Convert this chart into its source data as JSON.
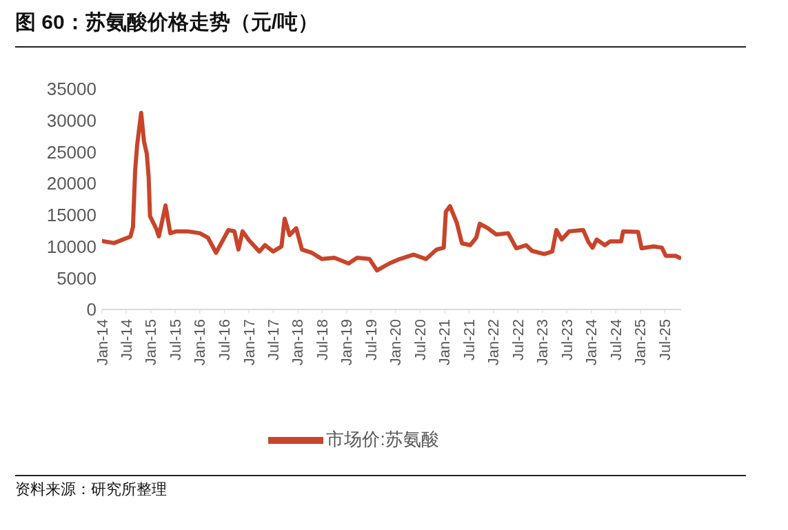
{
  "chart_data": {
    "type": "line",
    "title": "图 60：苏氨酸价格走势（元/吨）",
    "annotations": [
      "资料来源：研究所整理"
    ],
    "x": [
      "2014-01-01",
      "2014-04-01",
      "2014-08-01",
      "2014-08-20",
      "2014-09-05",
      "2014-09-20",
      "2014-10-20",
      "2014-11-10",
      "2014-12-01",
      "2014-12-15",
      "2014-12-25",
      "2015-02-10",
      "2015-03-01",
      "2015-04-20",
      "2015-05-25",
      "2015-07-10",
      "2015-10-01",
      "2016-01-01",
      "2016-03-01",
      "2016-05-01",
      "2016-08-01",
      "2016-09-15",
      "2016-10-15",
      "2016-11-15",
      "2017-01-01",
      "2017-03-20",
      "2017-05-01",
      "2017-07-01",
      "2017-09-01",
      "2017-09-25",
      "2017-11-01",
      "2017-12-20",
      "2018-02-01",
      "2018-04-15",
      "2018-07-01",
      "2018-10-01",
      "2019-01-15",
      "2019-03-20",
      "2019-06-20",
      "2019-08-15",
      "2019-11-15",
      "2020-02-01",
      "2020-05-15",
      "2020-08-15",
      "2020-11-01",
      "2020-12-25",
      "2021-01-10",
      "2021-02-10",
      "2021-04-01",
      "2021-05-10",
      "2021-07-10",
      "2021-08-25",
      "2021-09-20",
      "2021-11-20",
      "2022-01-20",
      "2022-04-20",
      "2022-06-20",
      "2022-09-01",
      "2022-10-15",
      "2023-01-15",
      "2023-03-15",
      "2023-04-15",
      "2023-05-25",
      "2023-07-20",
      "2023-11-01",
      "2023-12-10",
      "2024-01-10",
      "2024-02-10",
      "2024-04-10",
      "2024-05-20",
      "2024-08-10",
      "2024-08-25",
      "2024-12-15",
      "2025-01-10",
      "2025-04-10",
      "2025-06-10",
      "2025-07-10",
      "2025-09-20",
      "2025-10-20"
    ],
    "series": [
      {
        "name": "市场价:苏氨酸",
        "color": "#c8442a",
        "values": [
          10850,
          10540,
          11570,
          13100,
          22000,
          26100,
          31200,
          26700,
          24700,
          21000,
          14800,
          12800,
          11600,
          16500,
          12100,
          12400,
          12400,
          12100,
          11400,
          9000,
          12600,
          12400,
          9500,
          12400,
          11000,
          9200,
          10200,
          9200,
          10000,
          14400,
          11800,
          12900,
          9500,
          9000,
          8000,
          8200,
          7300,
          8200,
          8000,
          6200,
          7300,
          8000,
          8700,
          8000,
          9500,
          9800,
          15500,
          16400,
          13800,
          10500,
          10200,
          11400,
          13600,
          12900,
          11900,
          12100,
          9700,
          10200,
          9300,
          8800,
          9200,
          12600,
          11100,
          12400,
          12600,
          10700,
          9800,
          11100,
          10200,
          10800,
          10800,
          12400,
          12300,
          9700,
          10000,
          9800,
          8500,
          8500,
          8200
        ]
      }
    ],
    "xlim": [
      "2014-01-01",
      "2025-11-01"
    ],
    "xticks": [
      {
        "value": "2014-01-01",
        "label": "Jan-14"
      },
      {
        "value": "2014-07-01",
        "label": "Jul-14"
      },
      {
        "value": "2015-01-01",
        "label": "Jan-15"
      },
      {
        "value": "2015-07-01",
        "label": "Jul-15"
      },
      {
        "value": "2016-01-01",
        "label": "Jan-16"
      },
      {
        "value": "2016-07-01",
        "label": "Jul-16"
      },
      {
        "value": "2017-01-01",
        "label": "Jan-17"
      },
      {
        "value": "2017-07-01",
        "label": "Jul-17"
      },
      {
        "value": "2018-01-01",
        "label": "Jan-18"
      },
      {
        "value": "2018-07-01",
        "label": "Jul-18"
      },
      {
        "value": "2019-01-01",
        "label": "Jan-19"
      },
      {
        "value": "2019-07-01",
        "label": "Jul-19"
      },
      {
        "value": "2020-01-01",
        "label": "Jan-20"
      },
      {
        "value": "2020-07-01",
        "label": "Jul-20"
      },
      {
        "value": "2021-01-01",
        "label": "Jan-21"
      },
      {
        "value": "2021-07-01",
        "label": "Jul-21"
      },
      {
        "value": "2022-01-01",
        "label": "Jan-22"
      },
      {
        "value": "2022-07-01",
        "label": "Jul-22"
      },
      {
        "value": "2023-01-01",
        "label": "Jan-23"
      },
      {
        "value": "2023-07-01",
        "label": "Jul-23"
      },
      {
        "value": "2024-01-01",
        "label": "Jan-24"
      },
      {
        "value": "2024-07-01",
        "label": "Jul-24"
      },
      {
        "value": "2025-01-01",
        "label": "Jan-25"
      },
      {
        "value": "2025-07-01",
        "label": "Jul-25"
      }
    ],
    "ylim": [
      0,
      35000
    ],
    "yticks": [
      0,
      5000,
      10000,
      15000,
      20000,
      25000,
      30000,
      35000
    ],
    "grid": false,
    "legend": "bottom",
    "marker": "none",
    "line_style": "solid"
  }
}
